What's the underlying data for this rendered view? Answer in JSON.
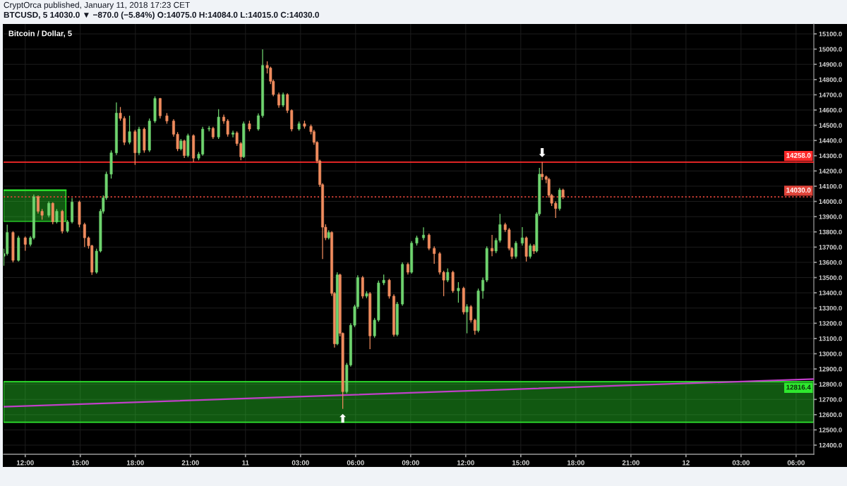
{
  "chart_data": {
    "type": "candlestick",
    "title": "Bitcoin / Dollar, 5",
    "subtitle": "BTCUSD, 5 14030.0 ▼ −870.0 (−5.84%) O:14075.0 H:14084.0 L:14015.0 C:14030.0",
    "annotations": [
      "CryptOrca published, January 11, 2018 17:23 CET",
      {
        "text": "⬇",
        "x": "2018-01-11T16:10",
        "y": 14258
      },
      {
        "text": "⬆",
        "x": "2018-01-11T05:18",
        "y": 12638
      }
    ],
    "x": [
      "2018-01-10T10:50",
      "2018-01-10T11:01",
      "2018-01-10T11:20",
      "2018-01-10T11:38",
      "2018-01-10T12:00",
      "2018-01-10T12:17",
      "2018-01-10T12:28",
      "2018-01-10T12:42",
      "2018-01-10T12:55",
      "2018-01-10T13:17",
      "2018-01-10T13:30",
      "2018-01-10T13:43",
      "2018-01-10T14:01",
      "2018-01-10T14:18",
      "2018-01-10T14:33",
      "2018-01-10T14:57",
      "2018-01-10T15:14",
      "2018-01-10T15:27",
      "2018-01-10T15:38",
      "2018-01-10T15:53",
      "2018-01-10T16:06",
      "2018-01-10T16:15",
      "2018-01-10T16:25",
      "2018-01-10T16:41",
      "2018-01-10T16:58",
      "2018-01-10T17:11",
      "2018-01-10T17:24",
      "2018-01-10T17:41",
      "2018-01-10T17:59",
      "2018-01-10T18:12",
      "2018-01-10T18:29",
      "2018-01-10T18:46",
      "2018-01-10T19:04",
      "2018-01-10T19:21",
      "2018-01-10T19:43",
      "2018-01-10T20:05",
      "2018-01-10T20:18",
      "2018-01-10T20:29",
      "2018-01-10T20:40",
      "2018-01-10T20:52",
      "2018-01-10T21:10",
      "2018-01-10T21:27",
      "2018-01-10T21:40",
      "2018-01-10T22:01",
      "2018-01-10T22:14",
      "2018-01-10T22:32",
      "2018-01-10T22:49",
      "2018-01-10T23:02",
      "2018-01-10T23:19",
      "2018-01-10T23:32",
      "2018-01-10T23:45",
      "2018-01-10T23:54",
      "2018-01-11T00:13",
      "2018-01-11T00:42",
      "2018-01-11T00:56",
      "2018-01-11T01:11",
      "2018-01-11T01:22",
      "2018-01-11T01:31",
      "2018-01-11T01:49",
      "2018-01-11T02:03",
      "2018-01-11T02:17",
      "2018-01-11T02:31",
      "2018-01-11T02:55",
      "2018-01-11T03:13",
      "2018-01-11T03:34",
      "2018-01-11T03:44",
      "2018-01-11T03:54",
      "2018-01-11T04:03",
      "2018-01-11T04:12",
      "2018-01-11T04:22",
      "2018-01-11T04:32",
      "2018-01-11T04:42",
      "2018-01-11T04:51",
      "2018-01-11T05:00",
      "2018-01-11T05:09",
      "2018-01-11T05:18",
      "2018-01-11T05:31",
      "2018-01-11T05:44",
      "2018-01-11T05:57",
      "2018-01-11T06:07",
      "2018-01-11T06:23",
      "2018-01-11T06:36",
      "2018-01-11T06:47",
      "2018-01-11T07:02",
      "2018-01-11T07:15",
      "2018-01-11T07:32",
      "2018-01-11T07:50",
      "2018-01-11T08:05",
      "2018-01-11T08:16",
      "2018-01-11T08:33",
      "2018-01-11T08:51",
      "2018-01-11T09:03",
      "2018-01-11T09:20",
      "2018-01-11T09:42",
      "2018-01-11T10:00",
      "2018-01-11T10:17",
      "2018-01-11T10:35",
      "2018-01-11T10:48",
      "2018-01-11T11:01",
      "2018-01-11T11:18",
      "2018-01-11T11:36",
      "2018-01-11T11:53",
      "2018-01-11T12:04",
      "2018-01-11T12:17",
      "2018-01-11T12:30",
      "2018-01-11T12:41",
      "2018-01-11T12:56",
      "2018-01-11T13:09",
      "2018-01-11T13:26",
      "2018-01-11T13:39",
      "2018-01-11T13:52",
      "2018-01-11T14:09",
      "2018-01-11T14:22",
      "2018-01-11T14:31",
      "2018-01-11T14:44",
      "2018-01-11T15:05",
      "2018-01-11T15:18",
      "2018-01-11T15:31",
      "2018-01-11T15:43",
      "2018-01-11T15:52",
      "2018-01-11T16:01",
      "2018-01-11T16:10",
      "2018-01-11T16:23",
      "2018-01-11T16:32",
      "2018-01-11T16:41",
      "2018-01-11T16:54",
      "2018-01-11T17:07",
      "2018-01-11T17:18"
    ],
    "ohlc": [
      [
        13640,
        13690,
        13578,
        13657
      ],
      [
        13657,
        13848,
        13645,
        13796
      ],
      [
        13796,
        13805,
        13600,
        13613
      ],
      [
        13613,
        13775,
        13605,
        13761
      ],
      [
        13761,
        13770,
        13676,
        13718
      ],
      [
        13718,
        13772,
        13705,
        13761
      ],
      [
        13761,
        14045,
        13750,
        14031
      ],
      [
        14031,
        14040,
        13920,
        13935
      ],
      [
        13935,
        13950,
        13880,
        13909
      ],
      [
        13909,
        14000,
        13895,
        13988
      ],
      [
        13988,
        13995,
        13850,
        13866
      ],
      [
        13866,
        13950,
        13855,
        13935
      ],
      [
        13935,
        13945,
        13790,
        13805
      ],
      [
        13805,
        13878,
        13795,
        13866
      ],
      [
        13866,
        14022,
        13855,
        13996
      ],
      [
        13996,
        14005,
        13830,
        13849
      ],
      [
        13849,
        13860,
        13700,
        13761
      ],
      [
        13761,
        13770,
        13690,
        13709
      ],
      [
        13709,
        13715,
        13518,
        13535
      ],
      [
        13535,
        13690,
        13525,
        13674
      ],
      [
        13674,
        13950,
        13665,
        13935
      ],
      [
        13935,
        14040,
        13920,
        14023
      ],
      [
        14023,
        14195,
        14010,
        14179
      ],
      [
        14179,
        14335,
        14150,
        14319
      ],
      [
        14319,
        14650,
        14305,
        14580
      ],
      [
        14580,
        14620,
        14530,
        14545
      ],
      [
        14545,
        14560,
        14370,
        14388
      ],
      [
        14388,
        14563,
        14375,
        14458
      ],
      [
        14458,
        14470,
        14240,
        14319
      ],
      [
        14319,
        14490,
        14305,
        14475
      ],
      [
        14475,
        14485,
        14320,
        14336
      ],
      [
        14336,
        14545,
        14325,
        14528
      ],
      [
        14528,
        14690,
        14515,
        14676
      ],
      [
        14676,
        14680,
        14545,
        14562
      ],
      [
        14562,
        14580,
        14510,
        14528
      ],
      [
        14528,
        14540,
        14425,
        14441
      ],
      [
        14441,
        14455,
        14330,
        14345
      ],
      [
        14345,
        14410,
        14335,
        14397
      ],
      [
        14397,
        14405,
        14285,
        14301
      ],
      [
        14301,
        14445,
        14290,
        14432
      ],
      [
        14432,
        14440,
        14258,
        14284
      ],
      [
        14284,
        14325,
        14270,
        14310
      ],
      [
        14310,
        14490,
        14300,
        14475
      ],
      [
        14475,
        14495,
        14460,
        14480
      ],
      [
        14480,
        14490,
        14410,
        14423
      ],
      [
        14423,
        14606,
        14410,
        14554
      ],
      [
        14554,
        14570,
        14510,
        14528
      ],
      [
        14528,
        14540,
        14425,
        14441
      ],
      [
        14441,
        14465,
        14420,
        14450
      ],
      [
        14450,
        14460,
        14365,
        14380
      ],
      [
        14380,
        14390,
        14270,
        14293
      ],
      [
        14293,
        14525,
        14285,
        14510
      ],
      [
        14510,
        14530,
        14460,
        14475
      ],
      [
        14475,
        14578,
        14465,
        14563
      ],
      [
        14563,
        14998,
        14550,
        14893
      ],
      [
        14893,
        14920,
        14840,
        14876
      ],
      [
        14876,
        14885,
        14770,
        14789
      ],
      [
        14789,
        14800,
        14690,
        14702
      ],
      [
        14702,
        14715,
        14615,
        14632
      ],
      [
        14632,
        14715,
        14620,
        14702
      ],
      [
        14702,
        14710,
        14580,
        14597
      ],
      [
        14597,
        14605,
        14460,
        14475
      ],
      [
        14475,
        14525,
        14465,
        14510
      ],
      [
        14510,
        14530,
        14478,
        14493
      ],
      [
        14493,
        14505,
        14440,
        14458
      ],
      [
        14458,
        14470,
        14372,
        14388
      ],
      [
        14388,
        14395,
        14250,
        14266
      ],
      [
        14266,
        14275,
        14095,
        14110
      ],
      [
        14110,
        14120,
        13622,
        13831
      ],
      [
        13831,
        13850,
        13745,
        13761
      ],
      [
        13761,
        13810,
        13750,
        13796
      ],
      [
        13796,
        13805,
        13380,
        13396
      ],
      [
        13396,
        13405,
        13040,
        13065
      ],
      [
        13065,
        13535,
        13055,
        13518
      ],
      [
        13518,
        13525,
        13115,
        13134
      ],
      [
        13134,
        13140,
        12638,
        12751
      ],
      [
        12751,
        12940,
        12740,
        12926
      ],
      [
        12926,
        13200,
        12915,
        13187
      ],
      [
        13187,
        13322,
        13175,
        13309
      ],
      [
        13309,
        13515,
        13295,
        13500
      ],
      [
        13500,
        13510,
        13362,
        13378
      ],
      [
        13378,
        13410,
        13365,
        13395
      ],
      [
        13395,
        13405,
        13030,
        13117
      ],
      [
        13117,
        13235,
        13105,
        13221
      ],
      [
        13221,
        13480,
        13210,
        13465
      ],
      [
        13465,
        13520,
        13450,
        13483
      ],
      [
        13483,
        13492,
        13362,
        13378
      ],
      [
        13378,
        13390,
        13112,
        13126
      ],
      [
        13126,
        13340,
        13115,
        13326
      ],
      [
        13326,
        13600,
        13315,
        13587
      ],
      [
        13587,
        13598,
        13520,
        13535
      ],
      [
        13535,
        13740,
        13525,
        13726
      ],
      [
        13726,
        13775,
        13710,
        13761
      ],
      [
        13761,
        13830,
        13745,
        13779
      ],
      [
        13779,
        13790,
        13680,
        13692
      ],
      [
        13692,
        13705,
        13590,
        13657
      ],
      [
        13657,
        13668,
        13520,
        13535
      ],
      [
        13535,
        13545,
        13378,
        13483
      ],
      [
        13483,
        13560,
        13470,
        13535
      ],
      [
        13535,
        13545,
        13400,
        13413
      ],
      [
        13413,
        13470,
        13335,
        13430
      ],
      [
        13430,
        13440,
        13258,
        13274
      ],
      [
        13274,
        13325,
        13134,
        13309
      ],
      [
        13309,
        13320,
        13205,
        13221
      ],
      [
        13221,
        13230,
        13125,
        13152
      ],
      [
        13152,
        13428,
        13140,
        13413
      ],
      [
        13413,
        13500,
        13361,
        13483
      ],
      [
        13483,
        13705,
        13470,
        13692
      ],
      [
        13692,
        13780,
        13640,
        13674
      ],
      [
        13674,
        13760,
        13660,
        13744
      ],
      [
        13744,
        13918,
        13730,
        13848
      ],
      [
        13848,
        13860,
        13800,
        13814
      ],
      [
        13814,
        13825,
        13678,
        13692
      ],
      [
        13692,
        13700,
        13622,
        13639
      ],
      [
        13639,
        13740,
        13625,
        13726
      ],
      [
        13726,
        13831,
        13710,
        13761
      ],
      [
        13761,
        13770,
        13605,
        13639
      ],
      [
        13639,
        13722,
        13625,
        13709
      ],
      [
        13709,
        13720,
        13655,
        13674
      ],
      [
        13674,
        13930,
        13665,
        13918
      ],
      [
        13918,
        14220,
        13905,
        14179
      ],
      [
        14179,
        14258,
        14140,
        14162
      ],
      [
        14162,
        14170,
        14120,
        14145
      ],
      [
        14145,
        14155,
        14025,
        14040
      ],
      [
        14040,
        14050,
        13970,
        13988
      ],
      [
        13988,
        14000,
        13892,
        13953
      ],
      [
        13953,
        14088,
        13940,
        14075
      ],
      [
        14075,
        14084,
        14015,
        14030
      ]
    ],
    "colors": [
      "#6fd46f",
      "#6fd46f",
      "#f08c5e",
      "#6fd46f",
      "#f08c5e",
      "#6fd46f",
      "#6fd46f",
      "#f08c5e",
      "#f08c5e",
      "#6fd46f",
      "#f08c5e",
      "#6fd46f",
      "#f08c5e",
      "#6fd46f",
      "#6fd46f",
      "#f08c5e",
      "#f08c5e",
      "#f08c5e",
      "#f08c5e",
      "#6fd46f",
      "#6fd46f",
      "#6fd46f",
      "#6fd46f",
      "#6fd46f",
      "#6fd46f",
      "#f08c5e",
      "#f08c5e",
      "#6fd46f",
      "#f08c5e",
      "#6fd46f",
      "#f08c5e",
      "#6fd46f",
      "#6fd46f",
      "#f08c5e",
      "#f08c5e",
      "#f08c5e",
      "#f08c5e",
      "#6fd46f",
      "#f08c5e",
      "#6fd46f",
      "#f08c5e",
      "#6fd46f",
      "#6fd46f",
      "#6fd46f",
      "#f08c5e",
      "#6fd46f",
      "#f08c5e",
      "#f08c5e",
      "#6fd46f",
      "#f08c5e",
      "#f08c5e",
      "#6fd46f",
      "#f08c5e",
      "#6fd46f",
      "#6fd46f",
      "#f08c5e",
      "#f08c5e",
      "#f08c5e",
      "#f08c5e",
      "#6fd46f",
      "#f08c5e",
      "#f08c5e",
      "#6fd46f",
      "#f08c5e",
      "#f08c5e",
      "#f08c5e",
      "#f08c5e",
      "#f08c5e",
      "#f08c5e",
      "#f08c5e",
      "#6fd46f",
      "#f08c5e",
      "#f08c5e",
      "#6fd46f",
      "#f08c5e",
      "#f08c5e",
      "#6fd46f",
      "#6fd46f",
      "#6fd46f",
      "#6fd46f",
      "#f08c5e",
      "#6fd46f",
      "#f08c5e",
      "#6fd46f",
      "#6fd46f",
      "#6fd46f",
      "#f08c5e",
      "#f08c5e",
      "#6fd46f",
      "#6fd46f",
      "#f08c5e",
      "#6fd46f",
      "#6fd46f",
      "#6fd46f",
      "#f08c5e",
      "#f08c5e",
      "#f08c5e",
      "#f08c5e",
      "#6fd46f",
      "#f08c5e",
      "#6fd46f",
      "#f08c5e",
      "#6fd46f",
      "#f08c5e",
      "#f08c5e",
      "#6fd46f",
      "#6fd46f",
      "#6fd46f",
      "#f08c5e",
      "#6fd46f",
      "#6fd46f",
      "#f08c5e",
      "#f08c5e",
      "#f08c5e",
      "#6fd46f",
      "#6fd46f",
      "#f08c5e",
      "#6fd46f",
      "#f08c5e",
      "#6fd46f",
      "#6fd46f",
      "#f08c5e",
      "#f08c5e",
      "#f08c5e",
      "#f08c5e",
      "#f08c5e",
      "#6fd46f",
      "#f08c5e"
    ],
    "series": [
      {
        "type": "line",
        "color": "#2ee82e",
        "x": [
          "2018-01-10T10:49",
          "2018-01-10T14:13"
        ],
        "values": [
          14074,
          14074
        ],
        "lower": [
          13869,
          13869
        ],
        "upper": [
          14074,
          14074
        ]
      },
      {
        "type": "line",
        "color": "#c040c8",
        "x": [
          "2018-01-10T10:49",
          "2018-01-12T06:58"
        ],
        "values": [
          12652,
          12834
        ]
      }
    ],
    "xlim": [
      "2018-01-10T10:49",
      "2018-01-12T06:58"
    ],
    "ylim": [
      12340,
      15165
    ],
    "xticks": [
      {
        "value": "2018-01-10T12:00",
        "label": "12:00"
      },
      {
        "value": "2018-01-10T15:00",
        "label": "15:00"
      },
      {
        "value": "2018-01-10T18:00",
        "label": "18:00"
      },
      {
        "value": "2018-01-10T21:00",
        "label": "21:00"
      },
      {
        "value": "2018-01-11T00:00",
        "label": "11"
      },
      {
        "value": "2018-01-11T03:00",
        "label": "03:00"
      },
      {
        "value": "2018-01-11T06:00",
        "label": "06:00"
      },
      {
        "value": "2018-01-11T09:00",
        "label": "09:00"
      },
      {
        "value": "2018-01-11T12:00",
        "label": "12:00"
      },
      {
        "value": "2018-01-11T15:00",
        "label": "15:00"
      },
      {
        "value": "2018-01-11T18:00",
        "label": "18:00"
      },
      {
        "value": "2018-01-11T21:00",
        "label": "21:00"
      },
      {
        "value": "2018-01-12T00:00",
        "label": "12"
      },
      {
        "value": "2018-01-12T03:00",
        "label": "03:00"
      },
      {
        "value": "2018-01-12T06:00",
        "label": "06:00"
      }
    ],
    "yticks": [
      {
        "value": 12400,
        "label": "12400.0"
      },
      {
        "value": 12500,
        "label": "12500.0"
      },
      {
        "value": 12600,
        "label": "12600.0"
      },
      {
        "value": 12700,
        "label": "12700.0"
      },
      {
        "value": 12800,
        "label": "12800.0"
      },
      {
        "value": 12900,
        "label": "12900.0"
      },
      {
        "value": 13000,
        "label": "13000.0"
      },
      {
        "value": 13100,
        "label": "13100.0"
      },
      {
        "value": 13200,
        "label": "13200.0"
      },
      {
        "value": 13300,
        "label": "13300.0"
      },
      {
        "value": 13400,
        "label": "13400.0"
      },
      {
        "value": 13500,
        "label": "13500.0"
      },
      {
        "value": 13600,
        "label": "13600.0"
      },
      {
        "value": 13700,
        "label": "13700.0"
      },
      {
        "value": 13800,
        "label": "13800.0"
      },
      {
        "value": 13900,
        "label": "13900.0"
      },
      {
        "value": 14000,
        "label": "14000.0"
      },
      {
        "value": 14100,
        "label": "14100.0"
      },
      {
        "value": 14200,
        "label": "14200.0"
      },
      {
        "value": 14300,
        "label": "14300.0"
      },
      {
        "value": 14400,
        "label": "14400.0"
      },
      {
        "value": 14500,
        "label": "14500.0"
      },
      {
        "value": 14600,
        "label": "14600.0"
      },
      {
        "value": 14700,
        "label": "14700.0"
      },
      {
        "value": 14800,
        "label": "14800.0"
      },
      {
        "value": 14900,
        "label": "14900.0"
      },
      {
        "value": 15000,
        "label": "15000.0"
      },
      {
        "value": 15100,
        "label": "15100.0"
      }
    ],
    "ref_lines": [
      {
        "axis": "y",
        "value": 14258.0,
        "label": "14258.0",
        "color": "#ff2a2a",
        "line_style": "solid"
      },
      {
        "axis": "y",
        "value": 14030.0,
        "label": "14030.0",
        "color": "#e0443a",
        "line_style": "dotted"
      }
    ],
    "bands": [
      {
        "axis": "y",
        "from": 12550,
        "to": 12816.4,
        "label": "12816.4",
        "color": "#2ee82e"
      }
    ],
    "grid": true
  }
}
